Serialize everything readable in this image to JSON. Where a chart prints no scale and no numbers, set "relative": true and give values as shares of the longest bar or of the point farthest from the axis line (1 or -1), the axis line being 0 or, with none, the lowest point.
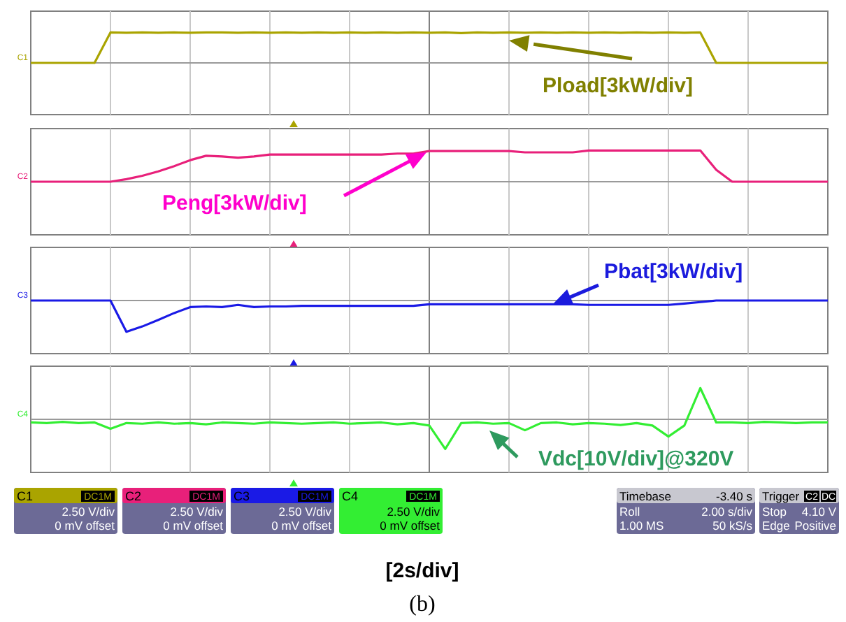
{
  "chart_data": [
    {
      "type": "line",
      "relative": true,
      "ylabel": "C1",
      "grid": true,
      "categories": [
        null,
        null,
        null,
        null,
        null,
        null,
        null,
        null,
        null,
        null,
        null,
        null,
        null,
        null,
        null,
        null,
        null,
        null,
        null,
        null,
        null,
        null,
        null,
        null,
        null,
        null,
        null,
        null,
        null,
        null,
        null,
        null,
        null,
        null,
        null,
        null,
        null,
        null,
        null,
        null,
        null,
        null,
        null,
        null,
        null,
        null,
        null,
        null,
        null,
        null,
        null
      ],
      "series": [
        {
          "color": "#aaa400",
          "values": [
            0,
            0,
            0,
            0,
            0,
            1,
            0.99,
            1,
            0.99,
            1,
            0.99,
            1,
            1,
            0.99,
            1,
            0.99,
            1,
            0.99,
            1,
            0.99,
            1,
            0.99,
            1,
            0.99,
            1,
            0.99,
            1,
            0.98,
            1,
            0.99,
            1,
            0.99,
            1,
            0.99,
            1,
            0.99,
            1,
            0.99,
            1,
            0.99,
            1,
            0.99,
            1,
            0,
            0,
            0,
            0,
            0,
            0,
            0,
            0
          ]
        }
      ],
      "annotations": [
        "Pload[3kW/div]"
      ]
    },
    {
      "type": "line",
      "relative": true,
      "ylabel": "C2",
      "grid": true,
      "categories": [
        null,
        null,
        null,
        null,
        null,
        null,
        null,
        null,
        null,
        null,
        null,
        null,
        null,
        null,
        null,
        null,
        null,
        null,
        null,
        null,
        null,
        null,
        null,
        null,
        null,
        null,
        null,
        null,
        null,
        null,
        null,
        null,
        null,
        null,
        null,
        null,
        null,
        null,
        null,
        null,
        null,
        null,
        null,
        null,
        null,
        null,
        null,
        null,
        null,
        null,
        null
      ],
      "series": [
        {
          "color": "#e8207a",
          "values": [
            0,
            0,
            0,
            0,
            0,
            0,
            0.08,
            0.19,
            0.33,
            0.5,
            0.69,
            0.83,
            0.81,
            0.77,
            0.81,
            0.87,
            0.87,
            0.87,
            0.87,
            0.87,
            0.87,
            0.87,
            0.87,
            0.9,
            0.9,
            0.98,
            0.98,
            0.98,
            0.98,
            0.98,
            0.98,
            0.94,
            0.94,
            0.94,
            0.94,
            1,
            1,
            1,
            1,
            1,
            1,
            1,
            1,
            0.38,
            0,
            0,
            0,
            0,
            0,
            0,
            0
          ]
        }
      ],
      "annotations": [
        "Peng[3kW/div]"
      ]
    },
    {
      "type": "line",
      "relative": true,
      "ylabel": "C3",
      "grid": true,
      "categories": [
        null,
        null,
        null,
        null,
        null,
        null,
        null,
        null,
        null,
        null,
        null,
        null,
        null,
        null,
        null,
        null,
        null,
        null,
        null,
        null,
        null,
        null,
        null,
        null,
        null,
        null,
        null,
        null,
        null,
        null,
        null,
        null,
        null,
        null,
        null,
        null,
        null,
        null,
        null,
        null,
        null,
        null,
        null,
        null,
        null,
        null,
        null,
        null,
        null,
        null,
        null
      ],
      "series": [
        {
          "color": "#1a1ae6",
          "values": [
            0,
            0,
            0,
            0,
            0,
            0,
            -1,
            -0.83,
            -0.62,
            -0.4,
            -0.21,
            -0.19,
            -0.21,
            -0.14,
            -0.21,
            -0.19,
            -0.19,
            -0.17,
            -0.17,
            -0.17,
            -0.17,
            -0.17,
            -0.17,
            -0.17,
            -0.17,
            -0.12,
            -0.12,
            -0.12,
            -0.12,
            -0.12,
            -0.12,
            -0.12,
            -0.12,
            -0.12,
            -0.12,
            -0.14,
            -0.14,
            -0.14,
            -0.14,
            -0.14,
            -0.14,
            -0.1,
            -0.05,
            0,
            0,
            0,
            0,
            0,
            0,
            0,
            0
          ]
        }
      ],
      "annotations": [
        "Pbat[3kW/div]"
      ]
    },
    {
      "type": "line",
      "relative": true,
      "ylabel": "C4",
      "grid": true,
      "categories": [
        null,
        null,
        null,
        null,
        null,
        null,
        null,
        null,
        null,
        null,
        null,
        null,
        null,
        null,
        null,
        null,
        null,
        null,
        null,
        null,
        null,
        null,
        null,
        null,
        null,
        null,
        null,
        null,
        null,
        null,
        null,
        null,
        null,
        null,
        null,
        null,
        null,
        null,
        null,
        null,
        null,
        null,
        null,
        null,
        null,
        null,
        null,
        null,
        null,
        null,
        null
      ],
      "series": [
        {
          "color": "#33ee33",
          "values": [
            -0.1,
            -0.12,
            -0.08,
            -0.12,
            -0.1,
            -0.3,
            -0.12,
            -0.14,
            -0.1,
            -0.14,
            -0.12,
            -0.16,
            -0.1,
            -0.12,
            -0.14,
            -0.1,
            -0.12,
            -0.14,
            -0.12,
            -0.1,
            -0.14,
            -0.12,
            -0.1,
            -0.16,
            -0.12,
            -0.2,
            -0.95,
            -0.12,
            -0.1,
            -0.14,
            -0.12,
            -0.35,
            -0.12,
            -0.1,
            -0.16,
            -0.12,
            -0.14,
            -0.18,
            -0.12,
            -0.2,
            -0.55,
            -0.2,
            1,
            -0.1,
            -0.1,
            -0.12,
            -0.08,
            -0.1,
            -0.12,
            -0.1,
            -0.1
          ]
        }
      ],
      "annotations": [
        "Vdc[10V/div]@320V"
      ]
    },
    {
      "type": "other",
      "annotations": [
        "C1",
        "DC1M",
        "2.50 V/div",
        "0 mV offset",
        "C2",
        "DC1M",
        "2.50 V/div",
        "0 mV offset",
        "C3",
        "DC1M",
        "2.50 V/div",
        "0 mV offset",
        "C4",
        "DC1M",
        "2.50 V/div",
        "0 mV offset",
        "Timebase",
        "-3.40 s",
        "Roll",
        "2.00 s/div",
        "1.00 MS",
        "50 kS/s",
        "Trigger",
        "C2",
        "DC",
        "Stop",
        "4.10 V",
        "Edge",
        "Positive",
        "[2s/div]",
        "(b)"
      ]
    }
  ]
}
